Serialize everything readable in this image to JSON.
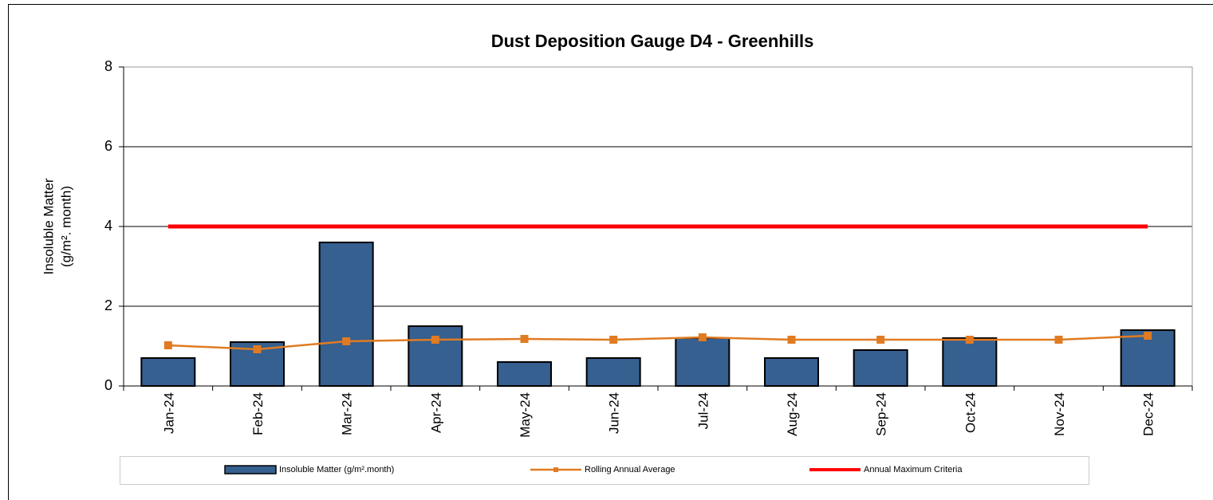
{
  "chart_data": {
    "type": "bar",
    "title": "Dust Deposition Gauge D4 - Greenhills",
    "y_label": [
      "Insoluble Matter",
      "(g/m². month)"
    ],
    "categories": [
      "Jan-24",
      "Feb-24",
      "Mar-24",
      "Apr-24",
      "May-24",
      "Jun-24",
      "Jul-24",
      "Aug-24",
      "Sep-24",
      "Oct-24",
      "Nov-24",
      "Dec-24"
    ],
    "series": [
      {
        "name": "Insoluble Matter (g/m².month)",
        "type": "bar",
        "color": "#35608f",
        "values": [
          0.7,
          1.1,
          3.6,
          1.5,
          0.6,
          0.7,
          1.2,
          0.7,
          0.9,
          1.2,
          null,
          1.4
        ]
      },
      {
        "name": "Rolling Annual Average",
        "type": "line",
        "color": "#e07b22",
        "values": [
          1.02,
          0.92,
          1.12,
          1.16,
          1.18,
          1.16,
          1.22,
          1.16,
          1.16,
          1.16,
          1.16,
          1.26
        ]
      },
      {
        "name": "Annual Maximum Criteria",
        "type": "line",
        "color": "#ff0000",
        "values": [
          4,
          4,
          4,
          4,
          4,
          4,
          4,
          4,
          4,
          4,
          4,
          4
        ]
      }
    ],
    "ylim": [
      0,
      8
    ],
    "yticks": [
      0,
      2,
      4,
      6,
      8
    ],
    "grid": true
  }
}
